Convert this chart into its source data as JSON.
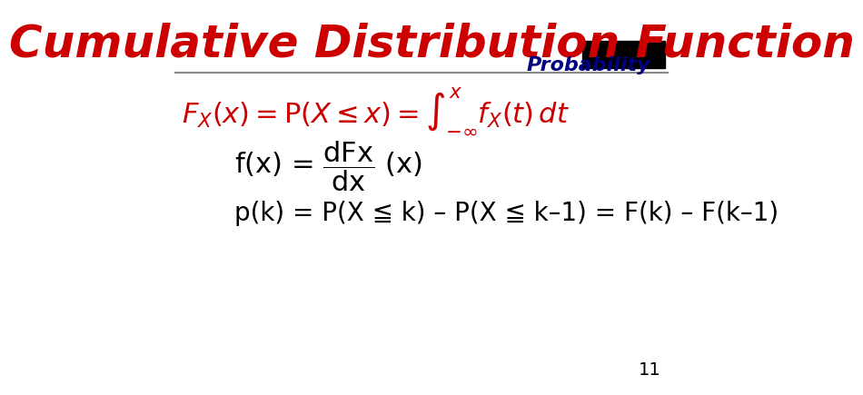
{
  "title": "Cumulative Distribution Function",
  "title_color": "#CC0000",
  "subtitle": "Probability",
  "subtitle_color": "#000080",
  "bg_color": "#FFFFFF",
  "line_color": "#888888",
  "black_box_color": "#000000",
  "formula_color": "#CC0000",
  "pkline": "p(k) = P(X ≦ k) – P(X ≦ k–1) = F(k) – F(k–1)",
  "page_number": "11",
  "formula_fontsize": 22,
  "body_fontsize": 20,
  "title_fontsize": 36
}
